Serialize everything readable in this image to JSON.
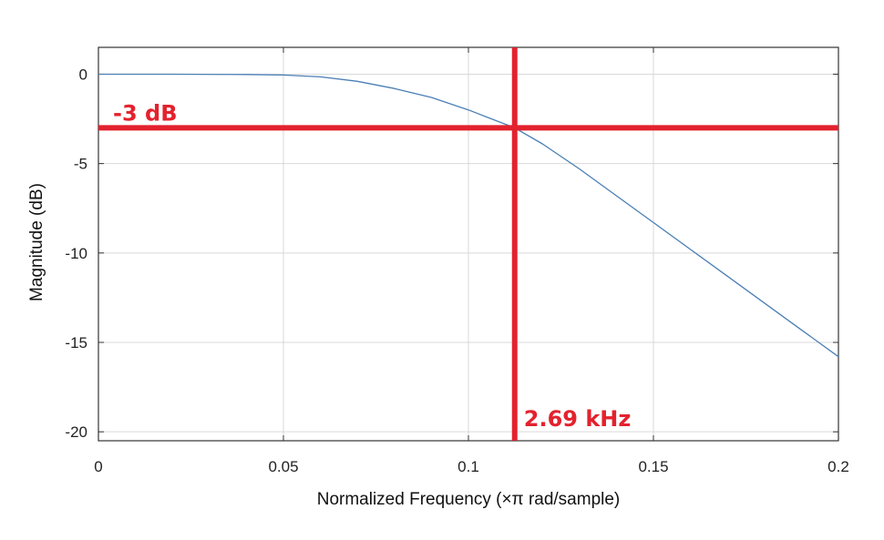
{
  "chart_data": {
    "type": "line",
    "xlabel": "Normalized Frequency (×π rad/sample)",
    "ylabel": "Magnitude (dB)",
    "xlim": [
      0,
      0.2
    ],
    "ylim": [
      -20.5,
      1.5
    ],
    "xticks": [
      0,
      0.05,
      0.1,
      0.15,
      0.2
    ],
    "xtick_labels": [
      "0",
      "0.05",
      "0.1",
      "0.15",
      "0.2"
    ],
    "yticks": [
      0,
      -5,
      -10,
      -15,
      -20
    ],
    "ytick_labels": [
      "0",
      "-5",
      "-10",
      "-15",
      "-20"
    ],
    "grid": true,
    "series": [
      {
        "color": "#4a7fb5",
        "x": [
          0,
          0.02,
          0.04,
          0.05,
          0.06,
          0.07,
          0.08,
          0.09,
          0.1,
          0.105,
          0.1125,
          0.12,
          0.13,
          0.14,
          0.15,
          0.16,
          0.17,
          0.18,
          0.19,
          0.2
        ],
        "y": [
          0,
          0,
          -0.02,
          -0.05,
          -0.15,
          -0.4,
          -0.8,
          -1.3,
          -2.0,
          -2.4,
          -3.0,
          -3.9,
          -5.3,
          -6.8,
          -8.3,
          -9.8,
          -11.3,
          -12.8,
          -14.3,
          -15.8
        ]
      }
    ],
    "annotations": [
      {
        "id": "db3",
        "text": "-3 dB",
        "orientation": "horizontal",
        "value": -3,
        "color": "#e3222e"
      },
      {
        "id": "cutoff",
        "text": "2.69 kHz",
        "orientation": "vertical",
        "value": 0.1125,
        "color": "#e3222e"
      }
    ]
  }
}
